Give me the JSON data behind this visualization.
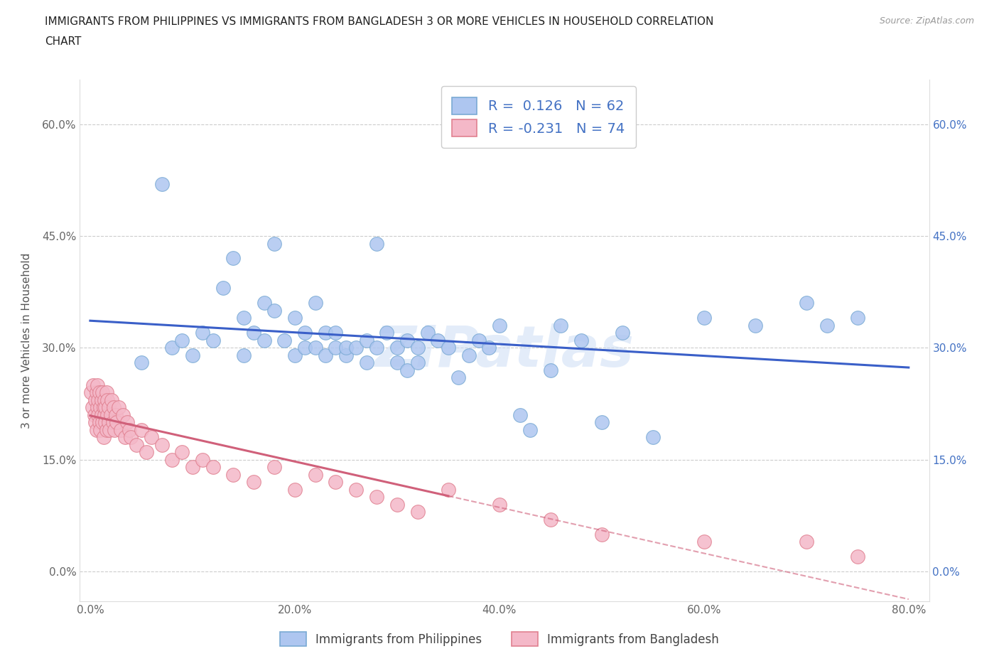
{
  "title_line1": "IMMIGRANTS FROM PHILIPPINES VS IMMIGRANTS FROM BANGLADESH 3 OR MORE VEHICLES IN HOUSEHOLD CORRELATION",
  "title_line2": "CHART",
  "source": "Source: ZipAtlas.com",
  "ylabel": "3 or more Vehicles in Household",
  "xlabel_ticks": [
    "0.0%",
    "20.0%",
    "40.0%",
    "60.0%",
    "80.0%"
  ],
  "xlabel_vals": [
    0.0,
    0.2,
    0.4,
    0.6,
    0.8
  ],
  "ylabel_ticks": [
    "0.0%",
    "15.0%",
    "30.0%",
    "45.0%",
    "60.0%"
  ],
  "ylabel_vals": [
    0.0,
    0.15,
    0.3,
    0.45,
    0.6
  ],
  "xlim": [
    -0.01,
    0.82
  ],
  "ylim": [
    -0.04,
    0.66
  ],
  "philippines_color": "#aec6f0",
  "philippines_edge": "#7aaad4",
  "bangladesh_color": "#f4b8c8",
  "bangladesh_edge": "#e08090",
  "trend_phil_color": "#3a5fc8",
  "trend_bang_color": "#d0607a",
  "philippines_R": 0.126,
  "philippines_N": 62,
  "bangladesh_R": -0.231,
  "bangladesh_N": 74,
  "legend_label_philippines": "Immigrants from Philippines",
  "legend_label_bangladesh": "Immigrants from Bangladesh",
  "watermark": "ZIPatlas",
  "phil_x": [
    0.05,
    0.07,
    0.08,
    0.09,
    0.1,
    0.11,
    0.12,
    0.13,
    0.14,
    0.15,
    0.15,
    0.16,
    0.17,
    0.17,
    0.18,
    0.18,
    0.19,
    0.2,
    0.2,
    0.21,
    0.21,
    0.22,
    0.22,
    0.23,
    0.23,
    0.24,
    0.24,
    0.25,
    0.25,
    0.26,
    0.27,
    0.27,
    0.28,
    0.28,
    0.29,
    0.3,
    0.3,
    0.31,
    0.31,
    0.32,
    0.32,
    0.33,
    0.34,
    0.35,
    0.36,
    0.37,
    0.38,
    0.39,
    0.4,
    0.42,
    0.43,
    0.45,
    0.46,
    0.48,
    0.5,
    0.52,
    0.55,
    0.6,
    0.65,
    0.7,
    0.72,
    0.75
  ],
  "phil_y": [
    0.28,
    0.52,
    0.3,
    0.31,
    0.29,
    0.32,
    0.31,
    0.38,
    0.42,
    0.29,
    0.34,
    0.32,
    0.36,
    0.31,
    0.44,
    0.35,
    0.31,
    0.34,
    0.29,
    0.32,
    0.3,
    0.36,
    0.3,
    0.32,
    0.29,
    0.3,
    0.32,
    0.29,
    0.3,
    0.3,
    0.28,
    0.31,
    0.3,
    0.44,
    0.32,
    0.28,
    0.3,
    0.27,
    0.31,
    0.3,
    0.28,
    0.32,
    0.31,
    0.3,
    0.26,
    0.29,
    0.31,
    0.3,
    0.33,
    0.21,
    0.19,
    0.27,
    0.33,
    0.31,
    0.2,
    0.32,
    0.18,
    0.34,
    0.33,
    0.36,
    0.33,
    0.34
  ],
  "bang_x": [
    0.001,
    0.002,
    0.003,
    0.004,
    0.005,
    0.005,
    0.006,
    0.006,
    0.007,
    0.007,
    0.008,
    0.008,
    0.009,
    0.009,
    0.01,
    0.01,
    0.011,
    0.011,
    0.012,
    0.012,
    0.013,
    0.013,
    0.014,
    0.014,
    0.015,
    0.015,
    0.016,
    0.016,
    0.017,
    0.017,
    0.018,
    0.018,
    0.019,
    0.02,
    0.021,
    0.022,
    0.023,
    0.024,
    0.025,
    0.026,
    0.028,
    0.03,
    0.032,
    0.034,
    0.036,
    0.038,
    0.04,
    0.045,
    0.05,
    0.055,
    0.06,
    0.07,
    0.08,
    0.09,
    0.1,
    0.11,
    0.12,
    0.14,
    0.16,
    0.18,
    0.2,
    0.22,
    0.24,
    0.26,
    0.28,
    0.3,
    0.32,
    0.35,
    0.4,
    0.45,
    0.5,
    0.6,
    0.7,
    0.75
  ],
  "bang_y": [
    0.24,
    0.22,
    0.25,
    0.21,
    0.23,
    0.2,
    0.24,
    0.19,
    0.22,
    0.25,
    0.21,
    0.23,
    0.2,
    0.24,
    0.22,
    0.19,
    0.23,
    0.21,
    0.2,
    0.24,
    0.22,
    0.18,
    0.21,
    0.23,
    0.2,
    0.22,
    0.19,
    0.24,
    0.21,
    0.23,
    0.2,
    0.22,
    0.19,
    0.21,
    0.23,
    0.2,
    0.22,
    0.19,
    0.21,
    0.2,
    0.22,
    0.19,
    0.21,
    0.18,
    0.2,
    0.19,
    0.18,
    0.17,
    0.19,
    0.16,
    0.18,
    0.17,
    0.15,
    0.16,
    0.14,
    0.15,
    0.14,
    0.13,
    0.12,
    0.14,
    0.11,
    0.13,
    0.12,
    0.11,
    0.1,
    0.09,
    0.08,
    0.11,
    0.09,
    0.07,
    0.05,
    0.04,
    0.04,
    0.02
  ]
}
